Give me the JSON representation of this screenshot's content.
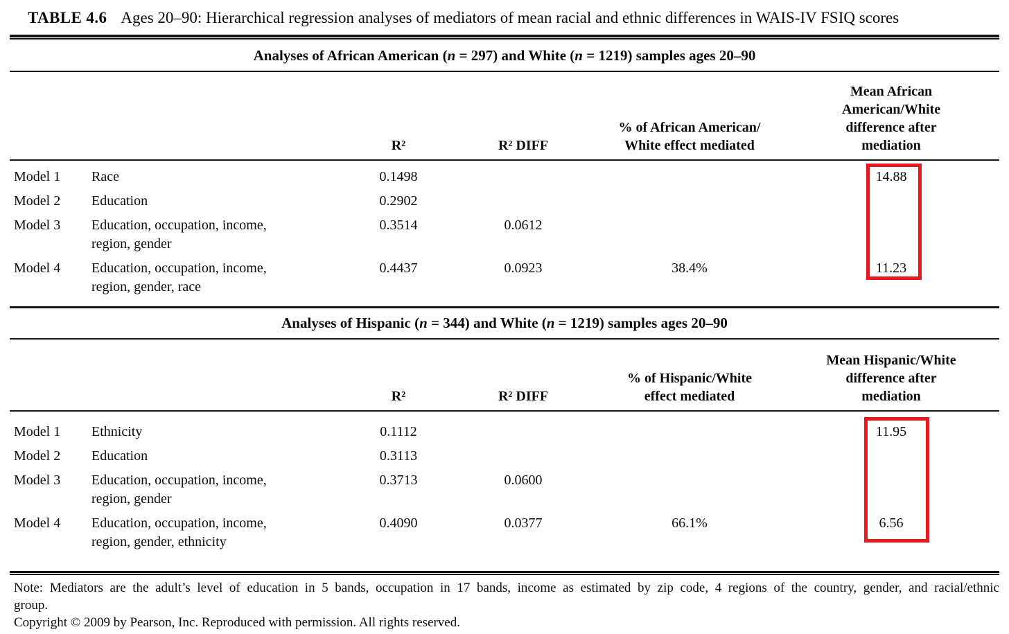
{
  "page": {
    "table_label": "TABLE 4.6",
    "table_caption": "Ages 20–90: Hierarchical regression analyses of mediators of mean racial and ethnic differences in WAIS-IV FSIQ scores",
    "highlight_color": "#e8181f",
    "note_line1": "Note: Mediators are the adult’s level of education in 5 bands, occupation in 17 bands, income as estimated by zip code, 4 regions of the country, gender, and racial/ethnic",
    "note_line2": "group.",
    "copyright": "Copyright © 2009 by Pearson, Inc. Reproduced with permission. All rights reserved."
  },
  "sections": [
    {
      "title_parts": {
        "p0": "Analyses of African American (",
        "n1": "n",
        "p1": " = 297) and White (",
        "n2": "n",
        "p2": " = 1219) samples ages 20–90"
      },
      "columns": {
        "r2": "R²",
        "r2diff": "R² DIFF",
        "pct": "% of African American/\nWhite effect mediated",
        "mean": "Mean African\nAmerican/White\ndifference after\nmediation"
      },
      "rows": [
        {
          "model": "Model 1",
          "predictors": "Race",
          "r2": "0.1498",
          "r2diff": "",
          "pct": "",
          "mean": "14.88"
        },
        {
          "model": "Model 2",
          "predictors": "Education",
          "r2": "0.2902",
          "r2diff": "",
          "pct": "",
          "mean": ""
        },
        {
          "model": "Model 3",
          "predictors": "Education, occupation, income,\nregion, gender",
          "r2": "0.3514",
          "r2diff": "0.0612",
          "pct": "",
          "mean": ""
        },
        {
          "model": "Model 4",
          "predictors": "Education, occupation, income,\nregion, gender, race",
          "r2": "0.4437",
          "r2diff": "0.0923",
          "pct": "38.4%",
          "mean": "11.23"
        }
      ]
    },
    {
      "title_parts": {
        "p0": "Analyses of Hispanic (",
        "n1": "n",
        "p1": " = 344) and White (",
        "n2": "n",
        "p2": " = 1219) samples ages 20–90"
      },
      "columns": {
        "r2": "R²",
        "r2diff": "R² DIFF",
        "pct": "% of Hispanic/White\neffect mediated",
        "mean": "Mean Hispanic/White\ndifference after\nmediation"
      },
      "rows": [
        {
          "model": "Model 1",
          "predictors": "Ethnicity",
          "r2": "0.1112",
          "r2diff": "",
          "pct": "",
          "mean": "11.95"
        },
        {
          "model": "Model 2",
          "predictors": "Education",
          "r2": "0.3113",
          "r2diff": "",
          "pct": "",
          "mean": ""
        },
        {
          "model": "Model 3",
          "predictors": "Education, occupation, income,\nregion, gender",
          "r2": "0.3713",
          "r2diff": "0.0600",
          "pct": "",
          "mean": ""
        },
        {
          "model": "Model 4",
          "predictors": "Education, occupation, income,\nregion, gender, ethnicity",
          "r2": "0.4090",
          "r2diff": "0.0377",
          "pct": "66.1%",
          "mean": "6.56"
        }
      ]
    }
  ]
}
